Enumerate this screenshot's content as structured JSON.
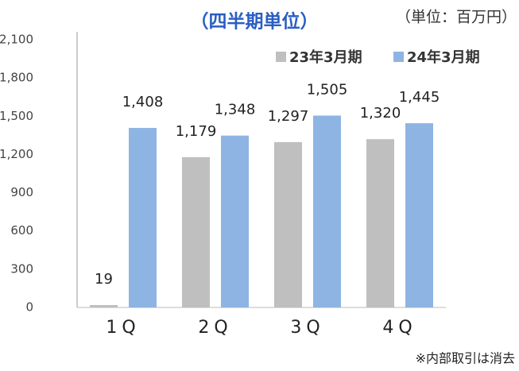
{
  "chart_data": {
    "type": "bar",
    "title": "（四半期単位）",
    "subtitle": "（単位：百万円）",
    "annotations": [
      "※内部取引は消去"
    ],
    "categories": [
      "1Q",
      "2Q",
      "3Q",
      "4Q"
    ],
    "series": [
      {
        "name": "23年3月期",
        "color": "#bfbfbf",
        "values": [
          19,
          1179,
          1297,
          1320
        ],
        "value_labels": [
          "19",
          "1,179",
          "1,297",
          "1,320"
        ]
      },
      {
        "name": "24年3月期",
        "color": "#8eb4e3",
        "values": [
          1408,
          1348,
          1505,
          1445
        ],
        "value_labels": [
          "1,408",
          "1,348",
          "1,505",
          "1,445"
        ]
      }
    ],
    "ylim": [
      0,
      2100
    ],
    "yticks": [
      0,
      300,
      600,
      900,
      {
        "value": 1200,
        "label": "1,200"
      },
      {
        "value": 1500,
        "label": "1,500"
      },
      {
        "value": 1800,
        "label": "1,800"
      },
      {
        "value": 2100,
        "label": "2,100"
      }
    ],
    "grid": false,
    "legend": "top-right"
  }
}
